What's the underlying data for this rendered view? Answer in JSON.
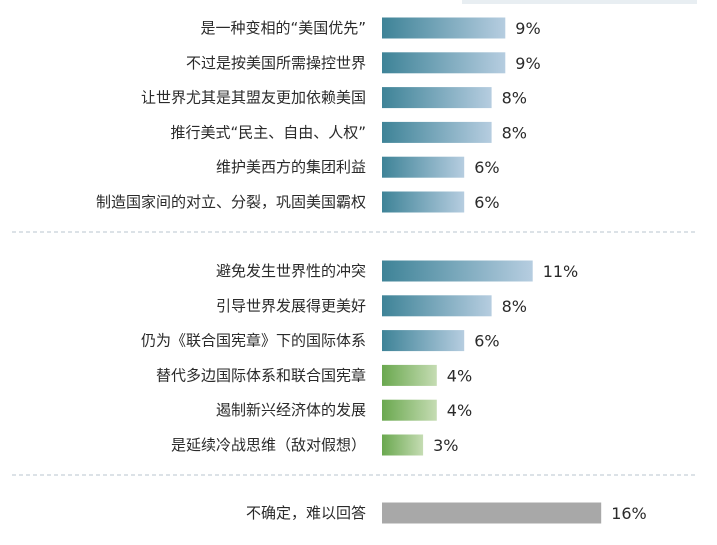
{
  "chart_data": {
    "type": "bar",
    "orientation": "horizontal",
    "value_suffix": "%",
    "max_value": 16,
    "groups": [
      {
        "style": "teal",
        "items": [
          {
            "label": "是一种变相的“美国优先”",
            "value": 9
          },
          {
            "label": "不过是按美国所需操控世界",
            "value": 9
          },
          {
            "label": "让世界尤其是其盟友更加依赖美国",
            "value": 8
          },
          {
            "label": "推行美式“民主、自由、人权”",
            "value": 8
          },
          {
            "label": "维护美西方的集团利益",
            "value": 6
          },
          {
            "label": "制造国家间的对立、分裂，巩固美国霸权",
            "value": 6
          }
        ]
      },
      {
        "style": "mixed",
        "items": [
          {
            "label": "避免发生世界性的冲突",
            "value": 11,
            "color": "teal"
          },
          {
            "label": "引导世界发展得更美好",
            "value": 8,
            "color": "teal"
          },
          {
            "label": "仍为《联合国宪章》下的国际体系",
            "value": 6,
            "color": "teal"
          },
          {
            "label": "替代多边国际体系和联合国宪章",
            "value": 4,
            "color": "green"
          },
          {
            "label": "遏制新兴经济体的发展",
            "value": 4,
            "color": "green"
          },
          {
            "label": "是延续冷战思维（敌对假想）",
            "value": 3,
            "color": "green"
          }
        ]
      },
      {
        "style": "gray",
        "items": [
          {
            "label": "不确定，难以回答",
            "value": 16,
            "color": "gray"
          }
        ]
      }
    ],
    "colors": {
      "teal_dark": "#3e8397",
      "teal_light": "#b6cde0",
      "green_dark": "#6aa84f",
      "green_light": "#c5dcb3",
      "gray": "#a8a8a8"
    }
  }
}
